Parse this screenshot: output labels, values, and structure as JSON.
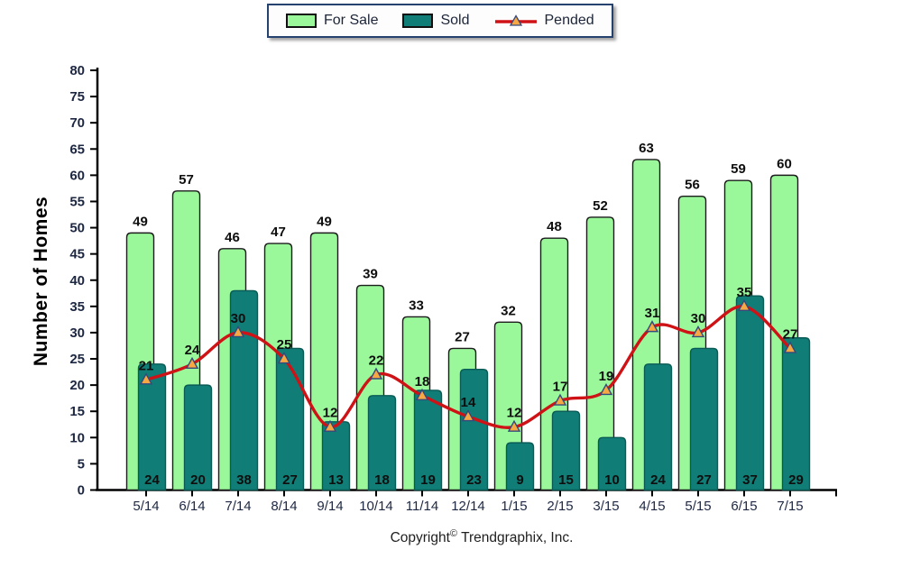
{
  "chart_data": {
    "type": "bar+line",
    "categories": [
      "5/14",
      "6/14",
      "7/14",
      "8/14",
      "9/14",
      "10/14",
      "11/14",
      "12/14",
      "1/15",
      "2/15",
      "3/15",
      "4/15",
      "5/15",
      "6/15",
      "7/15"
    ],
    "series": [
      {
        "name": "For Sale",
        "type": "bar",
        "color": "#9af89b",
        "border": "#1c1c1c",
        "values": [
          49,
          57,
          46,
          47,
          49,
          39,
          33,
          27,
          32,
          48,
          52,
          63,
          56,
          59,
          60
        ]
      },
      {
        "name": "Sold",
        "type": "bar",
        "color": "#107d77",
        "border": "#0a5b56",
        "values": [
          24,
          20,
          38,
          27,
          13,
          18,
          19,
          23,
          9,
          15,
          10,
          24,
          27,
          37,
          29
        ]
      },
      {
        "name": "Pended",
        "type": "line",
        "color": "#cf1216",
        "marker_fill": "#f8a843",
        "marker_border": "#35497c",
        "values": [
          21,
          24,
          30,
          25,
          12,
          22,
          18,
          14,
          12,
          17,
          19,
          31,
          30,
          35,
          27
        ]
      }
    ],
    "title": "",
    "xlabel": "",
    "ylabel": "Number of Homes",
    "ylim": [
      0,
      80
    ],
    "ytick_step": 5,
    "grid": false,
    "legend_position": "top-center",
    "axis_color": "#000000"
  },
  "footer": {
    "copyright_word": "Copyright",
    "copyright_symbol": "©",
    "company": "Trendgraphix, Inc."
  }
}
